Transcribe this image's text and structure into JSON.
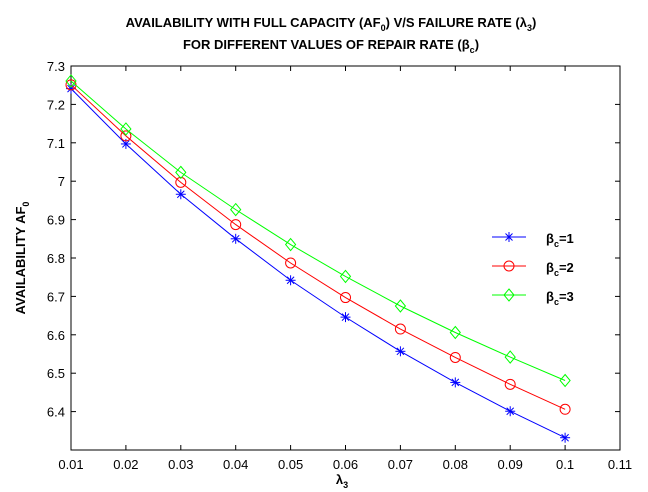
{
  "chart_data": {
    "type": "line",
    "title_line1": {
      "pre": "AVAILABILITY WITH FULL CAPACITY (AF",
      "sub": "0",
      "post": ") V/S FAILURE RATE (λ",
      "sub2": "3",
      "post2": ")"
    },
    "title_line2": {
      "pre": "FOR DIFFERENT VALUES OF REPAIR RATE (β",
      "sub": "c",
      "post": ")"
    },
    "xlabel": {
      "main": "λ",
      "sub": "3"
    },
    "ylabel": {
      "main": "AVAILABILITY AF",
      "sub": "0"
    },
    "xlim": [
      0.01,
      0.11
    ],
    "ylim": [
      6.3,
      7.3
    ],
    "xticks": [
      "0.01",
      "0.02",
      "0.03",
      "0.04",
      "0.05",
      "0.06",
      "0.07",
      "0.08",
      "0.09",
      "0.1",
      "0.11"
    ],
    "yticks": [
      "7.3",
      "7.2",
      "7.1",
      "7",
      "6.9",
      "6.8",
      "6.7",
      "6.6",
      "6.5",
      "6.4"
    ],
    "x": [
      0.01,
      0.02,
      0.03,
      0.04,
      0.05,
      0.06,
      0.07,
      0.08,
      0.09,
      0.1
    ],
    "grid": false,
    "legend_position": "right",
    "series": [
      {
        "label_main": "β",
        "label_sub": "c",
        "label_post": "=1",
        "marker": "star",
        "color": "#0000ff",
        "values": [
          7.241,
          7.097,
          6.966,
          6.85,
          6.742,
          6.646,
          6.557,
          6.476,
          6.401,
          6.332
        ]
      },
      {
        "label_main": "β",
        "label_sub": "c",
        "label_post": "=2",
        "marker": "circle",
        "color": "#ff0000",
        "values": [
          7.251,
          7.118,
          6.997,
          6.887,
          6.787,
          6.697,
          6.615,
          6.541,
          6.471,
          6.406
        ]
      },
      {
        "label_main": "β",
        "label_sub": "c",
        "label_post": "=3",
        "marker": "diamond",
        "color": "#00ff00",
        "values": [
          7.261,
          7.136,
          7.023,
          6.926,
          6.835,
          6.752,
          6.675,
          6.606,
          6.542,
          6.481
        ]
      }
    ]
  }
}
